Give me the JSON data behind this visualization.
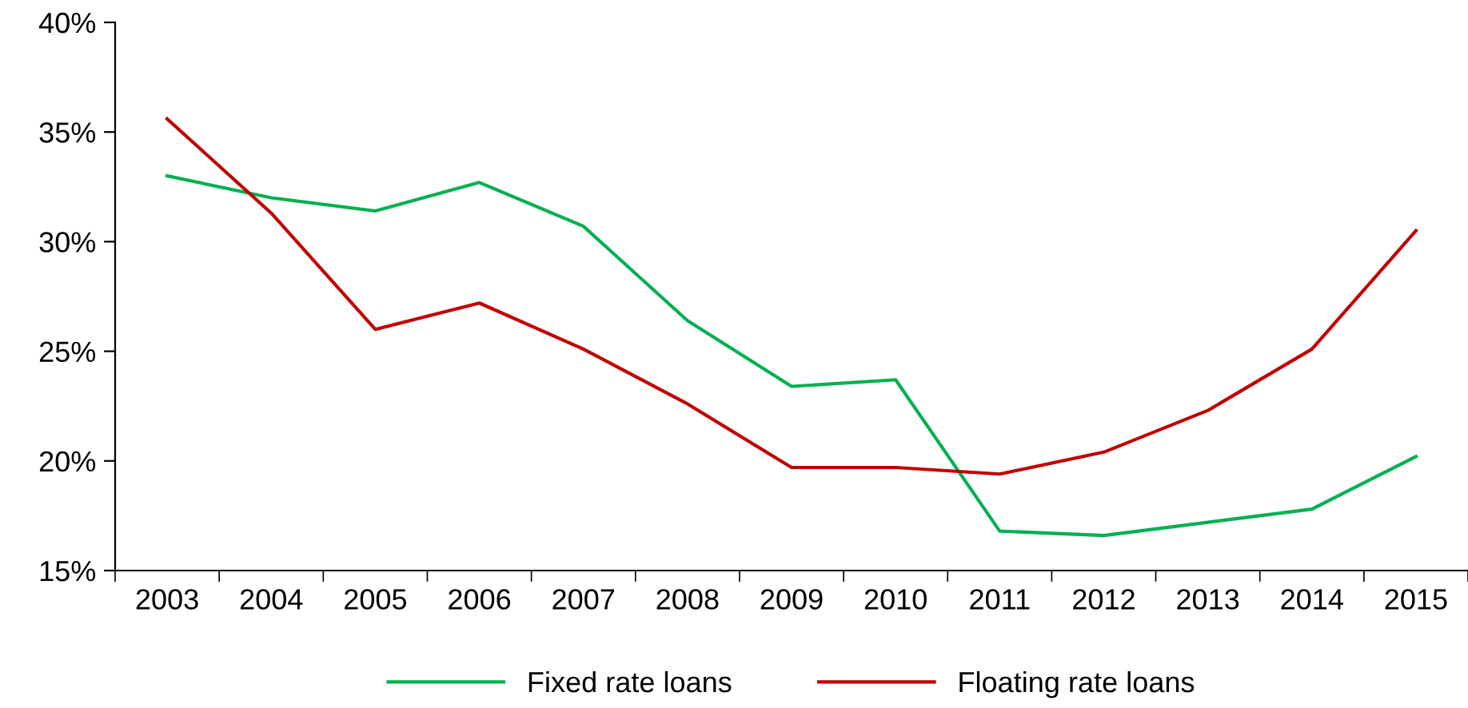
{
  "chart_data": {
    "type": "line",
    "categories": [
      "2003",
      "2004",
      "2005",
      "2006",
      "2007",
      "2008",
      "2009",
      "2010",
      "2011",
      "2012",
      "2013",
      "2014",
      "2015"
    ],
    "series": [
      {
        "name": "Fixed rate loans",
        "color": "#00b050",
        "values": [
          33.0,
          32.0,
          31.4,
          32.7,
          30.7,
          26.4,
          23.4,
          23.7,
          16.8,
          16.6,
          17.2,
          17.8,
          20.2
        ]
      },
      {
        "name": "Floating rate loans",
        "color": "#c00000",
        "values": [
          35.6,
          31.3,
          26.0,
          27.2,
          25.1,
          22.6,
          19.7,
          19.7,
          19.4,
          20.4,
          22.3,
          25.1,
          30.5
        ]
      }
    ],
    "ylim": [
      15,
      40
    ],
    "yticks": [
      {
        "value": 15,
        "label": "15%"
      },
      {
        "value": 20,
        "label": "20%"
      },
      {
        "value": 25,
        "label": "25%"
      },
      {
        "value": 30,
        "label": "30%"
      },
      {
        "value": 35,
        "label": "35%"
      },
      {
        "value": 40,
        "label": "40%"
      }
    ],
    "grid": false,
    "legend": "bottom",
    "marker": "none",
    "line_style": "solid"
  }
}
